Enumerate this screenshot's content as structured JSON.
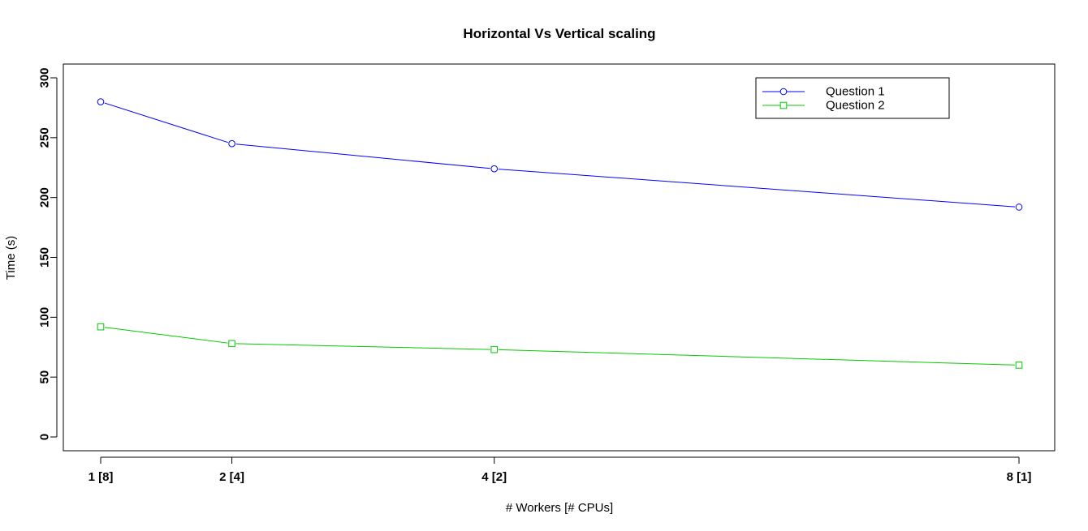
{
  "chart_data": {
    "type": "line",
    "title": "Horizontal Vs Vertical scaling",
    "xlabel": "# Workers [# CPUs]",
    "ylabel": "Time (s)",
    "x": [
      1,
      2,
      4,
      8
    ],
    "x_tick_labels": [
      "1 [8]",
      "2 [4]",
      "4 [2]",
      "8 [1]"
    ],
    "y_ticks": [
      0,
      50,
      100,
      150,
      200,
      250,
      300
    ],
    "ylim": [
      0,
      300
    ],
    "grid": false,
    "legend_position": "top-right",
    "series": [
      {
        "name": "Question 1",
        "values": [
          280,
          245,
          224,
          192
        ],
        "color": "#0000ff",
        "marker": "circle"
      },
      {
        "name": "Question 2",
        "values": [
          92,
          78,
          73,
          60
        ],
        "color": "#00cc00",
        "marker": "square"
      }
    ]
  }
}
